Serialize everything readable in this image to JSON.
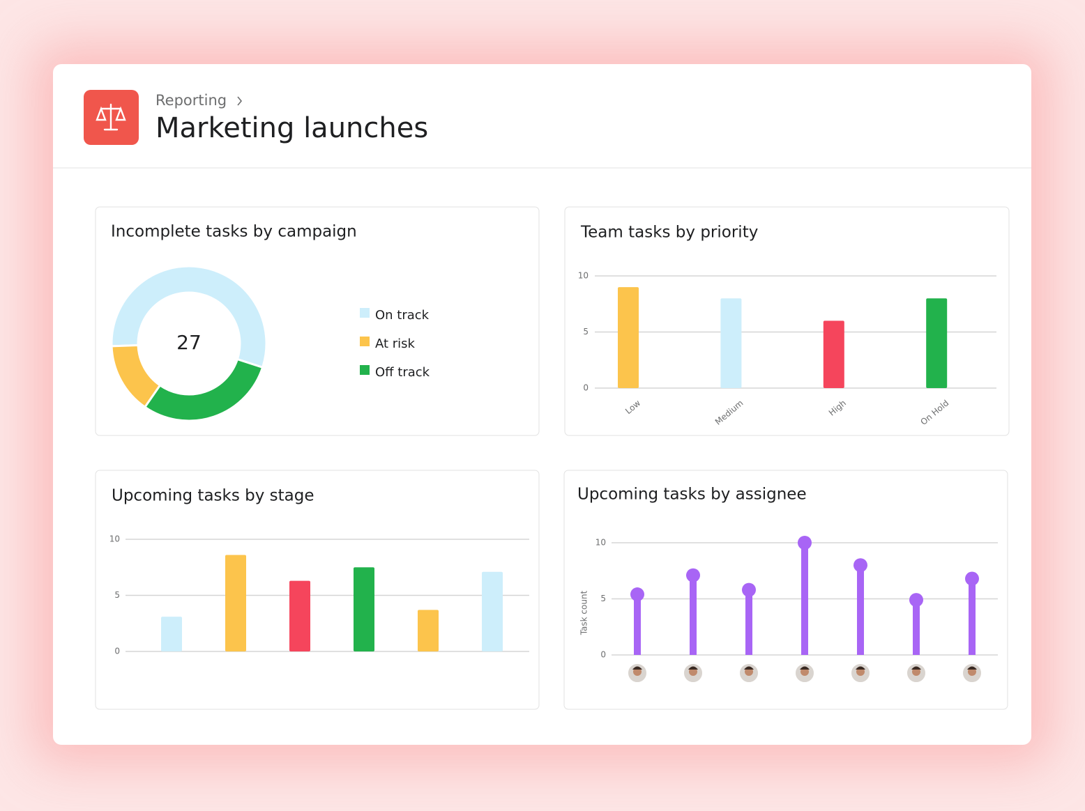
{
  "header": {
    "breadcrumb": "Reporting",
    "title": "Marketing launches"
  },
  "chart_data": [
    {
      "type": "donut",
      "title": "Incomplete tasks by campaign",
      "total": 27,
      "categories": [
        "On track",
        "At risk",
        "Off track"
      ],
      "values": [
        15,
        4,
        8
      ],
      "colors": [
        "#cdeefb",
        "#fcc44c",
        "#22b24c"
      ]
    },
    {
      "type": "bar",
      "title": "Team tasks by priority",
      "categories": [
        "Low",
        "Medium",
        "High",
        "On Hold"
      ],
      "values": [
        9,
        8,
        6,
        8
      ],
      "colors": [
        "#fcc44c",
        "#cdeefb",
        "#f5455c",
        "#22b24c"
      ],
      "ylim": [
        0,
        10
      ],
      "yticks": [
        0,
        5,
        10
      ],
      "grid": true
    },
    {
      "type": "bar",
      "title": "Upcoming tasks by stage",
      "values": [
        3.1,
        8.6,
        6.3,
        7.5,
        3.7,
        7.1
      ],
      "colors": [
        "#cdeefb",
        "#fcc44c",
        "#f5455c",
        "#22b24c",
        "#fcc44c",
        "#cdeefb"
      ],
      "ylim": [
        0,
        10
      ],
      "yticks": [
        0,
        5,
        10
      ],
      "grid": true
    },
    {
      "type": "lollipop",
      "title": "Upcoming tasks by assignee",
      "y_label": "Task count",
      "values": [
        5.4,
        7.1,
        5.8,
        10,
        8,
        4.9,
        6.8
      ],
      "color": "#a865f5",
      "ylim": [
        0,
        10
      ],
      "yticks": [
        0,
        5,
        10
      ],
      "grid": true
    }
  ]
}
